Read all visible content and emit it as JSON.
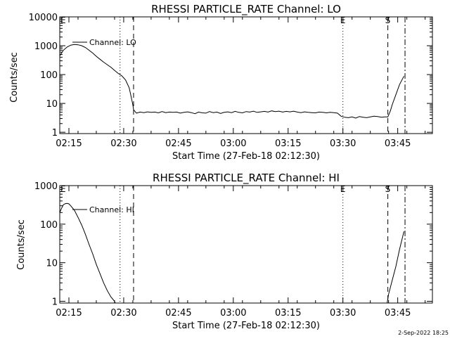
{
  "footer": {
    "date": "2-Sep-2022 18:25"
  },
  "chart_data": [
    {
      "type": "line",
      "title": "RHESSI PARTICLE_RATE Channel: LO",
      "xlabel": "Start Time (27-Feb-18 02:12:30)",
      "ylabel": "Counts/sec",
      "yscale": "log",
      "ylim": [
        0.9,
        10000
      ],
      "xlim_min": [
        0,
        102
      ],
      "x_unit": "minutes after start time",
      "x_ticks": [
        {
          "label": "02:15",
          "x": 2.5
        },
        {
          "label": "02:30",
          "x": 17.5
        },
        {
          "label": "02:45",
          "x": 32.5
        },
        {
          "label": "03:00",
          "x": 47.5
        },
        {
          "label": "03:15",
          "x": 62.5
        },
        {
          "label": "03:30",
          "x": 77.5
        },
        {
          "label": "03:45",
          "x": 92.5
        }
      ],
      "y_ticks": [
        {
          "label": "1",
          "v": 1
        },
        {
          "label": "10",
          "v": 10
        },
        {
          "label": "100",
          "v": 100
        },
        {
          "label": "1000",
          "v": 1000
        },
        {
          "label": "10000",
          "v": 10000
        }
      ],
      "legend": {
        "label": "Channel: LO",
        "position": "top-left"
      },
      "markers": [
        {
          "label": "E",
          "x": 0,
          "style": "none"
        },
        {
          "label": "",
          "x": 16.5,
          "style": "dotted"
        },
        {
          "label": "",
          "x": 20.2,
          "style": "dashed"
        },
        {
          "label": "E",
          "x": 77.5,
          "style": "dotted"
        },
        {
          "label": "S",
          "x": 89.8,
          "style": "dashed"
        },
        {
          "label": "",
          "x": 94.5,
          "style": "dashdot"
        }
      ],
      "series": [
        {
          "name": "Channel: LO",
          "x": [
            0,
            1,
            2,
            3,
            4,
            5,
            6,
            7,
            8,
            9,
            10,
            11,
            12,
            13,
            14,
            15,
            16,
            16.5,
            17,
            18,
            19,
            19.5,
            20,
            20.2,
            21,
            22,
            23,
            24,
            25,
            26,
            27,
            28,
            29,
            30,
            31,
            32,
            33,
            34,
            35,
            36,
            37,
            38,
            39,
            40,
            41,
            42,
            43,
            44,
            45,
            46,
            47,
            48,
            49,
            50,
            51,
            52,
            53,
            54,
            55,
            56,
            57,
            58,
            59,
            60,
            61,
            62,
            63,
            64,
            65,
            66,
            67,
            68,
            69,
            70,
            71,
            72,
            73,
            74,
            75,
            76,
            77,
            78,
            79,
            80,
            81,
            82,
            83,
            84,
            85,
            86,
            87,
            88,
            89,
            89.8,
            90.5,
            91,
            92,
            93,
            94.2
          ],
          "values": [
            450,
            700,
            900,
            1050,
            1100,
            1080,
            1000,
            870,
            700,
            560,
            430,
            340,
            270,
            220,
            180,
            140,
            110,
            100,
            90,
            65,
            35,
            18,
            9,
            6,
            4.6,
            5,
            4.8,
            5.1,
            4.9,
            5,
            4.7,
            5.2,
            4.8,
            5,
            4.9,
            5,
            4.6,
            4.9,
            5.1,
            4.8,
            4.4,
            5,
            4.7,
            4.6,
            5.2,
            4.8,
            5,
            4.5,
            4.9,
            5.1,
            4.8,
            5.3,
            4.9,
            4.7,
            5.2,
            5,
            5.4,
            4.9,
            5.1,
            5.3,
            5,
            5.5,
            5.2,
            5.4,
            5,
            5.3,
            5.1,
            5.4,
            5,
            4.8,
            5.1,
            4.9,
            4.8,
            4.7,
            5,
            4.9,
            4.7,
            4.9,
            4.8,
            4.6,
            3.6,
            3.3,
            3.2,
            3.4,
            3.1,
            3.5,
            3.3,
            3.2,
            3.4,
            3.6,
            3.5,
            3.3,
            3.4,
            3.4,
            5.5,
            9,
            20,
            45,
            88
          ]
        }
      ]
    },
    {
      "type": "line",
      "title": "RHESSI PARTICLE_RATE Channel: HI",
      "xlabel": "Start Time (27-Feb-18 02:12:30)",
      "ylabel": "Counts/sec",
      "yscale": "log",
      "ylim": [
        0.9,
        1000
      ],
      "xlim_min": [
        0,
        102
      ],
      "x_unit": "minutes after start time",
      "x_ticks": [
        {
          "label": "02:15",
          "x": 2.5
        },
        {
          "label": "02:30",
          "x": 17.5
        },
        {
          "label": "02:45",
          "x": 32.5
        },
        {
          "label": "03:00",
          "x": 47.5
        },
        {
          "label": "03:15",
          "x": 62.5
        },
        {
          "label": "03:30",
          "x": 77.5
        },
        {
          "label": "03:45",
          "x": 92.5
        }
      ],
      "y_ticks": [
        {
          "label": "1",
          "v": 1
        },
        {
          "label": "10",
          "v": 10
        },
        {
          "label": "100",
          "v": 100
        },
        {
          "label": "1000",
          "v": 1000
        }
      ],
      "legend": {
        "label": "Channel: HI",
        "position": "top-left"
      },
      "markers": [
        {
          "label": "E",
          "x": 0,
          "style": "none"
        },
        {
          "label": "",
          "x": 16.5,
          "style": "dotted"
        },
        {
          "label": "",
          "x": 20.2,
          "style": "dashed"
        },
        {
          "label": "E",
          "x": 77.5,
          "style": "dotted"
        },
        {
          "label": "S",
          "x": 89.8,
          "style": "dashed"
        },
        {
          "label": "",
          "x": 94.5,
          "style": "dashdot"
        }
      ],
      "series": [
        {
          "name": "Channel: HI",
          "x": [
            0,
            0.5,
            1,
            1.5,
            2,
            2.5,
            3,
            4,
            5,
            6,
            7,
            8,
            9,
            10,
            11,
            12,
            13,
            14,
            15,
            15.2
          ],
          "values": [
            200,
            260,
            320,
            340,
            345,
            335,
            300,
            230,
            150,
            95,
            55,
            30,
            17,
            9,
            5.2,
            3,
            1.9,
            1.3,
            1.0,
            0.9
          ]
        },
        {
          "name": "Channel: HI",
          "x": [
            89.6,
            90,
            91,
            92,
            93,
            94.2
          ],
          "values": [
            0.9,
            1.5,
            3.5,
            8,
            22,
            65
          ]
        }
      ]
    }
  ]
}
